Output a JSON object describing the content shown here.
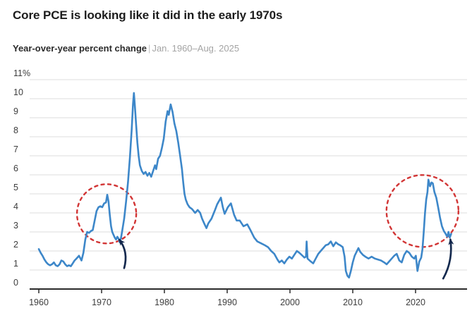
{
  "header": {
    "title": "Core PCE is looking like it did in the early 1970s",
    "subtitle_label": "Year-over-year percent change",
    "subtitle_separator": "|",
    "subtitle_range": "Jan. 1960–Aug. 2025"
  },
  "chart_data": {
    "type": "line",
    "title": "Core PCE is looking like it did in the early 1970s",
    "subtitle": "Year-over-year percent change | Jan. 1960–Aug. 2025",
    "xlabel": "",
    "ylabel": "",
    "ylim": [
      0,
      11
    ],
    "xlim": [
      1960,
      2026.5
    ],
    "grid": true,
    "y_ticks": [
      {
        "value": 11,
        "label": "11%"
      },
      {
        "value": 10,
        "label": "10"
      },
      {
        "value": 9,
        "label": "9"
      },
      {
        "value": 8,
        "label": "8"
      },
      {
        "value": 7,
        "label": "7"
      },
      {
        "value": 6,
        "label": "6"
      },
      {
        "value": 5,
        "label": "5"
      },
      {
        "value": 4,
        "label": "4"
      },
      {
        "value": 3,
        "label": "3"
      },
      {
        "value": 2,
        "label": "2"
      },
      {
        "value": 1,
        "label": "1"
      },
      {
        "value": 0,
        "label": "0"
      }
    ],
    "x_ticks": [
      {
        "value": 1960,
        "label": "1960"
      },
      {
        "value": 1970,
        "label": "1970"
      },
      {
        "value": 1980,
        "label": "1980"
      },
      {
        "value": 1990,
        "label": "1990"
      },
      {
        "value": 2000,
        "label": "2000"
      },
      {
        "value": 2010,
        "label": "2010"
      },
      {
        "value": 2020,
        "label": "2020"
      }
    ],
    "series": [
      {
        "name": "Core PCE year-over-year percent change",
        "color": "#3d87c9",
        "points": [
          [
            1960.0,
            2.1
          ],
          [
            1960.3,
            1.9
          ],
          [
            1960.6,
            1.75
          ],
          [
            1960.9,
            1.55
          ],
          [
            1961.2,
            1.4
          ],
          [
            1961.5,
            1.3
          ],
          [
            1961.8,
            1.25
          ],
          [
            1962.1,
            1.3
          ],
          [
            1962.4,
            1.4
          ],
          [
            1962.7,
            1.25
          ],
          [
            1963.0,
            1.2
          ],
          [
            1963.3,
            1.3
          ],
          [
            1963.6,
            1.5
          ],
          [
            1963.9,
            1.45
          ],
          [
            1964.2,
            1.3
          ],
          [
            1964.5,
            1.2
          ],
          [
            1964.8,
            1.25
          ],
          [
            1965.1,
            1.2
          ],
          [
            1965.4,
            1.35
          ],
          [
            1965.7,
            1.5
          ],
          [
            1966.0,
            1.6
          ],
          [
            1966.4,
            1.75
          ],
          [
            1966.8,
            1.5
          ],
          [
            1967.1,
            1.9
          ],
          [
            1967.4,
            2.6
          ],
          [
            1967.7,
            3.0
          ],
          [
            1968.0,
            2.95
          ],
          [
            1968.3,
            3.05
          ],
          [
            1968.6,
            3.1
          ],
          [
            1968.9,
            3.6
          ],
          [
            1969.2,
            4.1
          ],
          [
            1969.5,
            4.3
          ],
          [
            1969.8,
            4.35
          ],
          [
            1970.1,
            4.3
          ],
          [
            1970.4,
            4.5
          ],
          [
            1970.7,
            4.55
          ],
          [
            1970.9,
            4.95
          ],
          [
            1971.1,
            4.6
          ],
          [
            1971.3,
            3.9
          ],
          [
            1971.5,
            3.3
          ],
          [
            1971.7,
            3.0
          ],
          [
            1971.9,
            2.85
          ],
          [
            1972.1,
            2.7
          ],
          [
            1972.3,
            2.6
          ],
          [
            1972.5,
            2.75
          ],
          [
            1972.7,
            2.65
          ],
          [
            1972.9,
            2.45
          ],
          [
            1973.1,
            2.7
          ],
          [
            1973.3,
            3.1
          ],
          [
            1973.6,
            3.7
          ],
          [
            1973.9,
            4.6
          ],
          [
            1974.2,
            5.6
          ],
          [
            1974.5,
            6.9
          ],
          [
            1974.8,
            8.4
          ],
          [
            1975.0,
            9.7
          ],
          [
            1975.15,
            10.3
          ],
          [
            1975.3,
            9.6
          ],
          [
            1975.5,
            8.6
          ],
          [
            1975.7,
            7.7
          ],
          [
            1975.9,
            7.0
          ],
          [
            1976.1,
            6.5
          ],
          [
            1976.4,
            6.2
          ],
          [
            1976.7,
            6.05
          ],
          [
            1977.0,
            6.15
          ],
          [
            1977.3,
            5.95
          ],
          [
            1977.6,
            6.1
          ],
          [
            1977.9,
            5.9
          ],
          [
            1978.2,
            6.2
          ],
          [
            1978.5,
            6.5
          ],
          [
            1978.7,
            6.3
          ],
          [
            1979.0,
            6.85
          ],
          [
            1979.3,
            7.0
          ],
          [
            1979.6,
            7.4
          ],
          [
            1979.9,
            7.9
          ],
          [
            1980.2,
            8.8
          ],
          [
            1980.5,
            9.35
          ],
          [
            1980.7,
            9.15
          ],
          [
            1981.0,
            9.7
          ],
          [
            1981.3,
            9.3
          ],
          [
            1981.6,
            8.7
          ],
          [
            1981.9,
            8.3
          ],
          [
            1982.2,
            7.7
          ],
          [
            1982.5,
            7.0
          ],
          [
            1982.8,
            6.3
          ],
          [
            1983.0,
            5.6
          ],
          [
            1983.2,
            5.0
          ],
          [
            1983.4,
            4.7
          ],
          [
            1983.7,
            4.45
          ],
          [
            1984.0,
            4.3
          ],
          [
            1984.4,
            4.2
          ],
          [
            1984.9,
            4.0
          ],
          [
            1985.3,
            4.15
          ],
          [
            1985.7,
            4.0
          ],
          [
            1986.0,
            3.7
          ],
          [
            1986.4,
            3.4
          ],
          [
            1986.7,
            3.2
          ],
          [
            1987.0,
            3.45
          ],
          [
            1987.5,
            3.7
          ],
          [
            1988.0,
            4.1
          ],
          [
            1988.4,
            4.45
          ],
          [
            1989.0,
            4.8
          ],
          [
            1989.3,
            4.3
          ],
          [
            1989.6,
            3.95
          ],
          [
            1990.1,
            4.3
          ],
          [
            1990.6,
            4.5
          ],
          [
            1991.1,
            3.9
          ],
          [
            1991.5,
            3.6
          ],
          [
            1992.0,
            3.6
          ],
          [
            1992.6,
            3.3
          ],
          [
            1993.2,
            3.4
          ],
          [
            1993.7,
            3.1
          ],
          [
            1994.3,
            2.7
          ],
          [
            1994.8,
            2.5
          ],
          [
            1995.4,
            2.4
          ],
          [
            1996.0,
            2.3
          ],
          [
            1996.5,
            2.2
          ],
          [
            1997.0,
            2.0
          ],
          [
            1997.5,
            1.85
          ],
          [
            1998.0,
            1.55
          ],
          [
            1998.3,
            1.4
          ],
          [
            1998.7,
            1.5
          ],
          [
            1999.1,
            1.35
          ],
          [
            1999.5,
            1.55
          ],
          [
            1999.9,
            1.7
          ],
          [
            2000.3,
            1.6
          ],
          [
            2000.7,
            1.8
          ],
          [
            2001.1,
            2.0
          ],
          [
            2001.5,
            1.9
          ],
          [
            2002.0,
            1.75
          ],
          [
            2002.3,
            1.65
          ],
          [
            2002.55,
            1.7
          ],
          [
            2002.65,
            2.5
          ],
          [
            2002.8,
            1.6
          ],
          [
            2003.3,
            1.45
          ],
          [
            2003.7,
            1.35
          ],
          [
            2004.1,
            1.6
          ],
          [
            2004.5,
            1.85
          ],
          [
            2004.9,
            2.0
          ],
          [
            2005.3,
            2.15
          ],
          [
            2005.7,
            2.3
          ],
          [
            2006.1,
            2.35
          ],
          [
            2006.5,
            2.5
          ],
          [
            2006.9,
            2.25
          ],
          [
            2007.3,
            2.45
          ],
          [
            2007.7,
            2.35
          ],
          [
            2008.0,
            2.3
          ],
          [
            2008.4,
            2.2
          ],
          [
            2008.7,
            1.7
          ],
          [
            2008.9,
            0.95
          ],
          [
            2009.15,
            0.7
          ],
          [
            2009.4,
            0.6
          ],
          [
            2009.7,
            0.95
          ],
          [
            2010.0,
            1.4
          ],
          [
            2010.3,
            1.75
          ],
          [
            2010.6,
            1.95
          ],
          [
            2010.9,
            2.15
          ],
          [
            2011.2,
            1.95
          ],
          [
            2011.6,
            1.8
          ],
          [
            2012.0,
            1.7
          ],
          [
            2012.5,
            1.6
          ],
          [
            2013.0,
            1.7
          ],
          [
            2013.5,
            1.6
          ],
          [
            2014.0,
            1.55
          ],
          [
            2014.5,
            1.5
          ],
          [
            2015.0,
            1.4
          ],
          [
            2015.4,
            1.3
          ],
          [
            2015.8,
            1.45
          ],
          [
            2016.2,
            1.6
          ],
          [
            2016.6,
            1.75
          ],
          [
            2017.0,
            1.85
          ],
          [
            2017.4,
            1.5
          ],
          [
            2017.8,
            1.4
          ],
          [
            2018.2,
            1.8
          ],
          [
            2018.6,
            2.0
          ],
          [
            2019.0,
            1.9
          ],
          [
            2019.4,
            1.7
          ],
          [
            2019.8,
            1.6
          ],
          [
            2020.05,
            1.75
          ],
          [
            2020.3,
            0.95
          ],
          [
            2020.6,
            1.45
          ],
          [
            2020.9,
            1.65
          ],
          [
            2021.1,
            2.1
          ],
          [
            2021.3,
            3.0
          ],
          [
            2021.5,
            4.0
          ],
          [
            2021.7,
            4.7
          ],
          [
            2021.9,
            5.1
          ],
          [
            2022.05,
            5.75
          ],
          [
            2022.3,
            5.4
          ],
          [
            2022.55,
            5.6
          ],
          [
            2022.75,
            5.55
          ],
          [
            2023.0,
            5.1
          ],
          [
            2023.3,
            4.8
          ],
          [
            2023.6,
            4.3
          ],
          [
            2023.9,
            3.75
          ],
          [
            2024.2,
            3.3
          ],
          [
            2024.5,
            3.05
          ],
          [
            2024.8,
            2.9
          ],
          [
            2025.05,
            2.75
          ],
          [
            2025.25,
            3.0
          ],
          [
            2025.45,
            2.7
          ],
          [
            2025.67,
            2.9
          ]
        ]
      }
    ],
    "annotations": {
      "circle_color": "#d23535",
      "arrow_color": "#14294e",
      "circles": [
        {
          "name": "early-1970s",
          "year": 1970.8,
          "value": 3.95,
          "radius_px": 42
        },
        {
          "name": "early-2020s",
          "year": 2021.1,
          "value": 4.1,
          "radius_px": 51
        }
      ],
      "arrows": [
        {
          "name": "arrow-1972-dip",
          "tail": [
            1973.6,
            1.1
          ],
          "control": [
            1974.3,
            1.95
          ],
          "tip": [
            1972.85,
            2.58
          ]
        },
        {
          "name": "arrow-2025-end",
          "tail": [
            2024.4,
            0.55
          ],
          "control": [
            2026.0,
            1.5
          ],
          "tip": [
            2025.55,
            2.6
          ]
        }
      ]
    },
    "grid_color": "#dcdcdc",
    "axis_color": "#2b2b2b",
    "tick_label_color": "#3d3d3d",
    "legend": "none"
  }
}
